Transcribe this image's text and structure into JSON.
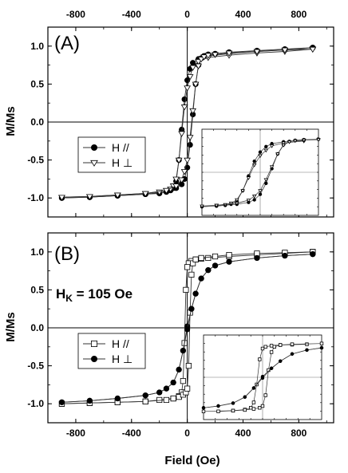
{
  "figure": {
    "ylabel_top": "M/Ms",
    "ylabel_bottom": "M/Ms",
    "xlabel": "Field (Oe)"
  },
  "chart_data": [
    {
      "type": "line",
      "panel_label": "(A)",
      "annotation": "",
      "xlim": [
        -1000,
        1050
      ],
      "ylim": [
        -1.25,
        1.25
      ],
      "x_ticks": [
        -800,
        -400,
        0,
        400,
        800
      ],
      "x_tick_labels": [
        "-800",
        "-400",
        "0",
        "400",
        "800"
      ],
      "y_ticks": [
        -1.0,
        -0.5,
        0.0,
        0.5,
        1.0
      ],
      "y_tick_labels": [
        "-1.0",
        "-0.5",
        "0.0",
        "0.5",
        "1.0"
      ],
      "x_tick_labels_position": "top",
      "legend_position": "middle-left",
      "series": [
        {
          "name": "H //",
          "marker": "filled-circle",
          "branch_descending": {
            "x": [
              900,
              700,
              500,
              300,
              150,
              80,
              40,
              20,
              0,
              -20,
              -40,
              -60,
              -80,
              -100,
              -120,
              -150,
              -200,
              -300,
              -500,
              -700,
              -900
            ],
            "y": [
              0.98,
              0.95,
              0.93,
              0.9,
              0.87,
              0.83,
              0.78,
              0.7,
              0.55,
              0.3,
              -0.1,
              -0.5,
              -0.78,
              -0.87,
              -0.9,
              -0.92,
              -0.94,
              -0.95,
              -0.97,
              -0.99,
              -1.0
            ]
          },
          "branch_ascending": {
            "x": [
              -900,
              -700,
              -500,
              -300,
              -150,
              -80,
              -40,
              -20,
              0,
              20,
              40,
              60,
              80,
              100,
              120,
              150,
              200,
              300,
              500,
              700,
              900
            ],
            "y": [
              -1.0,
              -0.99,
              -0.97,
              -0.95,
              -0.92,
              -0.87,
              -0.82,
              -0.75,
              -0.6,
              -0.3,
              0.1,
              0.5,
              0.75,
              0.84,
              0.87,
              0.89,
              0.9,
              0.92,
              0.94,
              0.96,
              0.98
            ]
          }
        },
        {
          "name": "H ⊥",
          "marker": "open-triangle-down",
          "branch_descending": {
            "x": [
              900,
              700,
              500,
              300,
              150,
              80,
              40,
              20,
              0,
              -20,
              -40,
              -60,
              -80,
              -100,
              -120,
              -150,
              -200,
              -300,
              -500,
              -700,
              -900
            ],
            "y": [
              0.96,
              0.93,
              0.91,
              0.88,
              0.85,
              0.8,
              0.72,
              0.6,
              0.45,
              0.2,
              -0.15,
              -0.5,
              -0.75,
              -0.84,
              -0.88,
              -0.9,
              -0.92,
              -0.94,
              -0.96,
              -0.98,
              -0.99
            ]
          },
          "branch_ascending": {
            "x": [
              -900,
              -700,
              -500,
              -300,
              -150,
              -80,
              -40,
              -20,
              0,
              20,
              40,
              60,
              80,
              100,
              120,
              150,
              200,
              300,
              500,
              700,
              900
            ],
            "y": [
              -0.99,
              -0.98,
              -0.96,
              -0.94,
              -0.9,
              -0.84,
              -0.76,
              -0.65,
              -0.5,
              -0.2,
              0.15,
              0.5,
              0.74,
              0.83,
              0.86,
              0.88,
              0.89,
              0.91,
              0.93,
              0.95,
              0.96
            ]
          }
        }
      ],
      "inset": {
        "description": "zoomed view of hysteresis loops around zero field",
        "ticks_labeled": false
      }
    },
    {
      "type": "line",
      "panel_label": "(B)",
      "annotation": "Hk = 105 Oe",
      "annotation_main": "H",
      "annotation_sub": "K",
      "annotation_rest": " = 105 Oe",
      "xlim": [
        -1000,
        1050
      ],
      "ylim": [
        -1.25,
        1.25
      ],
      "x_ticks": [
        -800,
        -400,
        0,
        400,
        800
      ],
      "x_tick_labels": [
        "-800",
        "-400",
        "0",
        "400",
        "800"
      ],
      "y_ticks": [
        -1.0,
        -0.5,
        0.0,
        0.5,
        1.0
      ],
      "y_tick_labels": [
        "-1.0",
        "-0.5",
        "0.0",
        "0.5",
        "1.0"
      ],
      "x_tick_labels_position": "bottom",
      "legend_position": "lower-left",
      "series": [
        {
          "name": "H //",
          "marker": "open-square",
          "branch_descending": {
            "x": [
              900,
              700,
              500,
              300,
              150,
              100,
              60,
              30,
              10,
              0,
              -10,
              -20,
              -30,
              -40,
              -60,
              -100,
              -200,
              -300,
              -500,
              -700,
              -900
            ],
            "y": [
              1.0,
              0.98,
              0.96,
              0.94,
              0.92,
              0.91,
              0.9,
              0.88,
              0.85,
              0.8,
              0.5,
              -0.2,
              -0.7,
              -0.85,
              -0.9,
              -0.93,
              -0.95,
              -0.97,
              -0.98,
              -0.99,
              -1.0
            ]
          },
          "branch_ascending": {
            "x": [
              -900,
              -700,
              -500,
              -300,
              -150,
              -100,
              -60,
              -30,
              -10,
              0,
              10,
              20,
              30,
              40,
              60,
              100,
              200,
              300,
              500,
              700,
              900
            ],
            "y": [
              -1.0,
              -0.99,
              -0.98,
              -0.97,
              -0.95,
              -0.93,
              -0.91,
              -0.88,
              -0.85,
              -0.8,
              -0.5,
              0.2,
              0.7,
              0.85,
              0.9,
              0.92,
              0.94,
              0.96,
              0.98,
              0.99,
              1.0
            ]
          }
        },
        {
          "name": "H ⊥",
          "marker": "filled-circle",
          "branch_descending": {
            "x": [
              900,
              700,
              500,
              300,
              200,
              150,
              100,
              60,
              30,
              0,
              -30,
              -60,
              -100,
              -150,
              -200,
              -300,
              -500,
              -700,
              -900
            ],
            "y": [
              0.97,
              0.95,
              0.92,
              0.87,
              0.82,
              0.76,
              0.65,
              0.45,
              0.25,
              0.02,
              -0.3,
              -0.55,
              -0.72,
              -0.8,
              -0.85,
              -0.89,
              -0.93,
              -0.96,
              -0.98
            ]
          },
          "branch_ascending": {
            "x": [
              -900,
              -700,
              -500,
              -300,
              -200,
              -150,
              -100,
              -60,
              -30,
              0,
              30,
              60,
              100,
              150,
              200,
              300,
              500,
              700,
              900
            ],
            "y": [
              -0.98,
              -0.96,
              -0.93,
              -0.89,
              -0.85,
              -0.8,
              -0.72,
              -0.55,
              -0.3,
              -0.02,
              0.25,
              0.45,
              0.65,
              0.76,
              0.82,
              0.87,
              0.92,
              0.95,
              0.97
            ]
          }
        }
      ],
      "inset": {
        "description": "zoomed view of hysteresis loops around zero field",
        "ticks_labeled": false
      }
    }
  ]
}
